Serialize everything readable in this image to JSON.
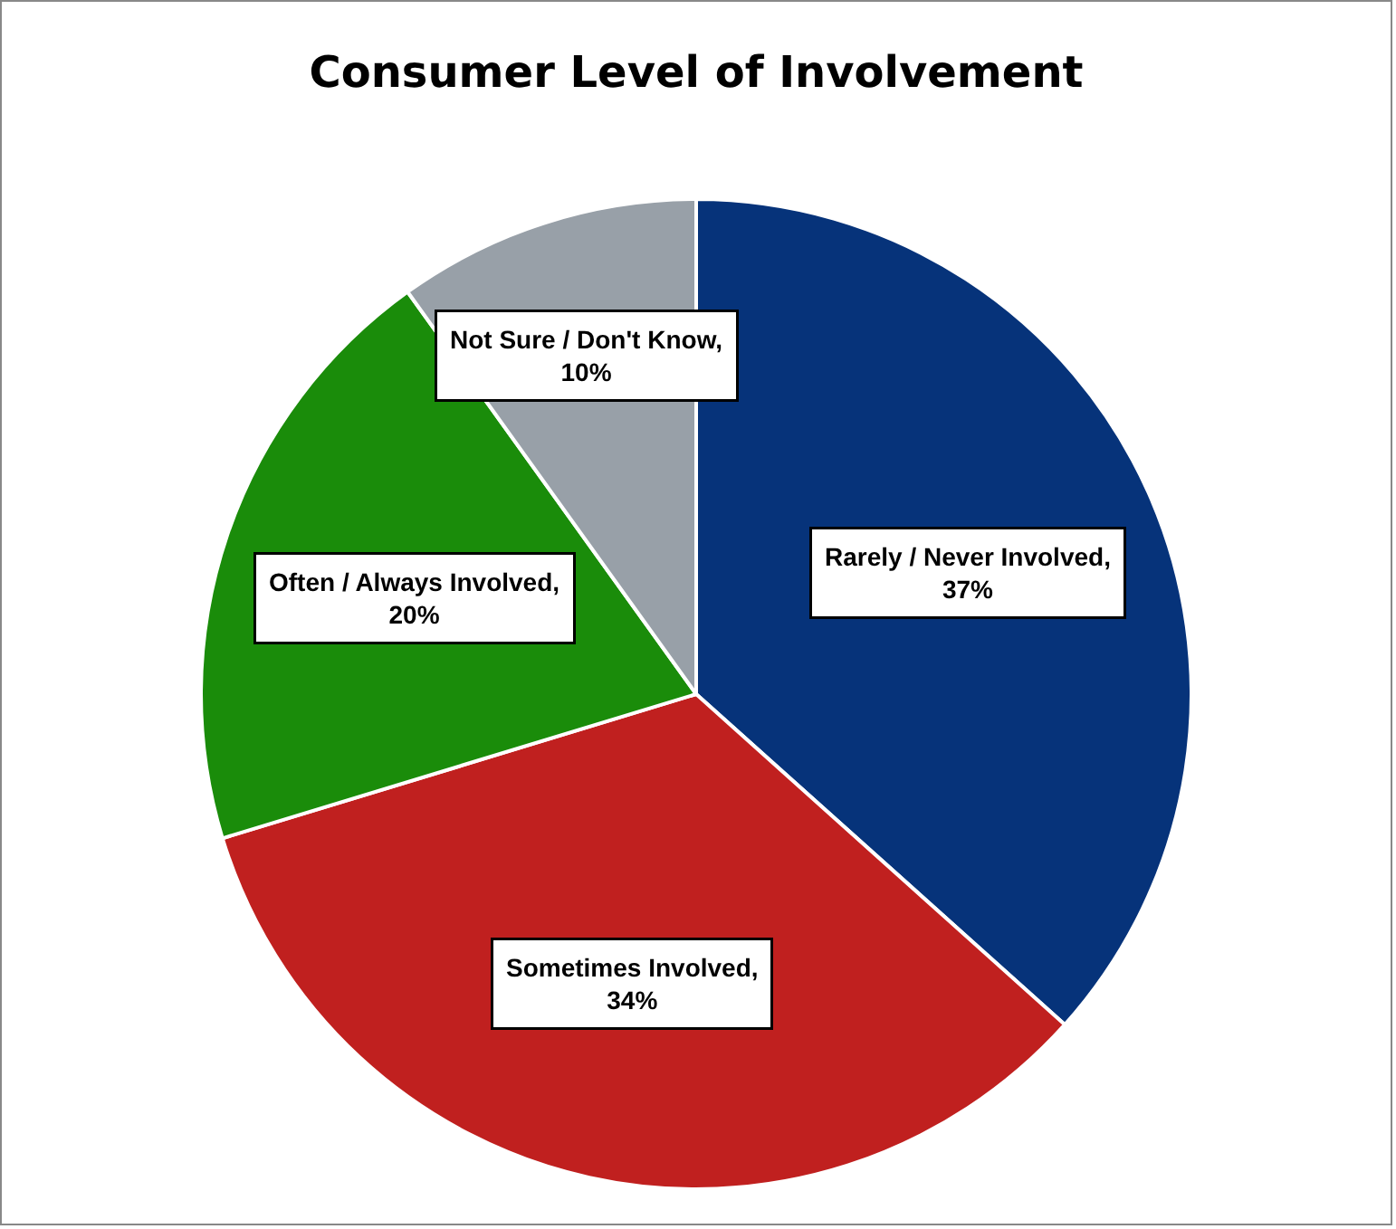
{
  "chart_data": {
    "type": "pie",
    "title": "Consumer Level of Involvement",
    "categories": [
      "Rarely / Never Involved",
      "Sometimes Involved",
      "Often / Always Involved",
      "Not Sure / Don't Know"
    ],
    "values": [
      37,
      34,
      20,
      10
    ],
    "colors": [
      "#06337a",
      "#c0201f",
      "#1a8c0a",
      "#98a0a8"
    ],
    "value_labels": [
      ",\n37%",
      ",\n34%",
      ",\n20%",
      ",\n10%"
    ],
    "legend": false
  }
}
